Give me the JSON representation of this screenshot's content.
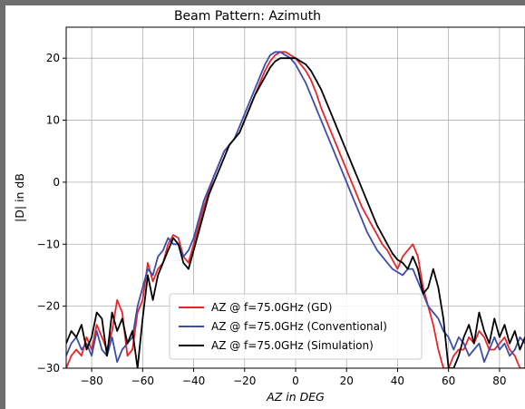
{
  "chart_data": {
    "type": "line",
    "title": "Beam Pattern: Azimuth",
    "xlabel": "AZ in DEG",
    "ylabel": "|D| in dB",
    "xlim": [
      -90,
      90
    ],
    "ylim": [
      -30,
      25
    ],
    "xticks": [
      -80,
      -60,
      -40,
      -20,
      0,
      20,
      40,
      60,
      80
    ],
    "yticks": [
      -30,
      -20,
      -10,
      0,
      10,
      20
    ],
    "xtick_labels": [
      "−80",
      "−60",
      "−40",
      "−20",
      "0",
      "20",
      "40",
      "60",
      "80"
    ],
    "ytick_labels": [
      "−30",
      "−20",
      "−10",
      "0",
      "10",
      "20"
    ],
    "grid": true,
    "legend_position": "lower-center",
    "series": [
      {
        "name": "AZ @ f=75.0GHz (GD)",
        "color": "#e8262a",
        "x": [
          -90,
          -88,
          -86,
          -84,
          -82,
          -80,
          -78,
          -76,
          -74,
          -72,
          -70,
          -68,
          -66,
          -64,
          -62,
          -60,
          -58,
          -56,
          -54,
          -52,
          -50,
          -48,
          -46,
          -44,
          -42,
          -40,
          -38,
          -36,
          -34,
          -32,
          -30,
          -28,
          -26,
          -24,
          -22,
          -20,
          -18,
          -16,
          -14,
          -12,
          -10,
          -8,
          -6,
          -4,
          -2,
          0,
          2,
          4,
          6,
          8,
          10,
          12,
          14,
          16,
          18,
          20,
          22,
          24,
          26,
          28,
          30,
          32,
          34,
          36,
          38,
          40,
          42,
          44,
          46,
          48,
          50,
          52,
          54,
          56,
          58,
          60,
          62,
          64,
          66,
          68,
          70,
          72,
          74,
          76,
          78,
          80,
          82,
          84,
          86,
          88,
          90
        ],
        "y": [
          -30,
          -28,
          -27,
          -28,
          -25,
          -27,
          -23,
          -25,
          -27,
          -24,
          -19,
          -21,
          -28,
          -27,
          -21,
          -19,
          -13,
          -16,
          -14,
          -13,
          -10,
          -8.5,
          -9,
          -12,
          -13,
          -10,
          -7,
          -4,
          -1.5,
          1,
          3,
          5,
          6,
          7,
          8,
          10,
          12,
          14,
          16,
          18,
          19.5,
          20.5,
          21,
          21,
          20.5,
          20,
          19,
          18,
          16.5,
          14.5,
          12,
          10,
          8,
          6,
          4,
          2,
          0,
          -2,
          -4,
          -5.5,
          -7,
          -8.5,
          -10,
          -11,
          -12.5,
          -14,
          -12,
          -11,
          -10,
          -12,
          -17,
          -20,
          -23,
          -27,
          -30,
          -30,
          -28,
          -27,
          -27,
          -25,
          -26,
          -24,
          -25,
          -27,
          -27,
          -26,
          -25,
          -27,
          -28,
          -30,
          -30
        ]
      },
      {
        "name": "AZ @ f=75.0GHz (Conventional)",
        "color": "#3c4ea8",
        "x": [
          -90,
          -88,
          -86,
          -84,
          -82,
          -80,
          -78,
          -76,
          -74,
          -72,
          -70,
          -68,
          -66,
          -64,
          -62,
          -60,
          -58,
          -56,
          -54,
          -52,
          -50,
          -48,
          -46,
          -44,
          -42,
          -40,
          -38,
          -36,
          -34,
          -32,
          -30,
          -28,
          -26,
          -24,
          -22,
          -20,
          -18,
          -16,
          -14,
          -12,
          -10,
          -8,
          -6,
          -4,
          -2,
          0,
          2,
          4,
          6,
          8,
          10,
          12,
          14,
          16,
          18,
          20,
          22,
          24,
          26,
          28,
          30,
          32,
          34,
          36,
          38,
          40,
          42,
          44,
          46,
          48,
          50,
          52,
          54,
          56,
          58,
          60,
          62,
          64,
          66,
          68,
          70,
          72,
          74,
          76,
          78,
          80,
          82,
          84,
          86,
          88,
          90
        ],
        "y": [
          -28,
          -26,
          -25,
          -27,
          -26,
          -28,
          -24,
          -27,
          -28,
          -25,
          -29,
          -27,
          -26,
          -25,
          -20,
          -17,
          -14,
          -15,
          -12,
          -11,
          -9,
          -10,
          -10,
          -12,
          -11,
          -9,
          -6,
          -3,
          -1,
          1,
          3,
          5,
          6,
          7,
          9,
          11,
          13,
          15,
          17,
          19,
          20.5,
          21,
          21,
          20.5,
          20,
          19,
          17.5,
          16,
          14,
          12,
          10,
          8,
          6,
          4,
          2,
          0,
          -2,
          -4,
          -6,
          -8,
          -9.5,
          -11,
          -12,
          -13,
          -14,
          -14.5,
          -15,
          -14,
          -14,
          -16,
          -18,
          -20,
          -21,
          -22,
          -24,
          -25,
          -27,
          -25,
          -26,
          -28,
          -27,
          -26,
          -29,
          -27,
          -25,
          -27,
          -26,
          -28,
          -27,
          -25,
          -26
        ]
      },
      {
        "name": "AZ @ f=75.0GHz (Simulation)",
        "color": "#000000",
        "x": [
          -90,
          -88,
          -86,
          -84,
          -82,
          -80,
          -78,
          -76,
          -74,
          -72,
          -70,
          -68,
          -66,
          -64,
          -62,
          -60,
          -58,
          -56,
          -54,
          -52,
          -50,
          -48,
          -46,
          -44,
          -42,
          -40,
          -38,
          -36,
          -34,
          -32,
          -30,
          -28,
          -26,
          -24,
          -22,
          -20,
          -18,
          -16,
          -14,
          -12,
          -10,
          -8,
          -6,
          -4,
          -2,
          0,
          2,
          4,
          6,
          8,
          10,
          12,
          14,
          16,
          18,
          20,
          22,
          24,
          26,
          28,
          30,
          32,
          34,
          36,
          38,
          40,
          42,
          44,
          46,
          48,
          50,
          52,
          54,
          56,
          58,
          60,
          62,
          64,
          66,
          68,
          70,
          72,
          74,
          76,
          78,
          80,
          82,
          84,
          86,
          88,
          90
        ],
        "y": [
          -26,
          -24,
          -25,
          -23,
          -27,
          -25,
          -21,
          -22,
          -28,
          -21,
          -24,
          -22,
          -26,
          -24,
          -30,
          -22,
          -15,
          -19,
          -15,
          -13,
          -11,
          -9,
          -10,
          -13,
          -14,
          -11,
          -8,
          -5,
          -2,
          0,
          2,
          4,
          6,
          7,
          8,
          10,
          12,
          14,
          15.5,
          17,
          18.5,
          19.5,
          20,
          20,
          20,
          20,
          19.5,
          19,
          18,
          16.5,
          15,
          13,
          11,
          9,
          7,
          5,
          3,
          1,
          -1,
          -3,
          -5,
          -7,
          -8.5,
          -10,
          -11.5,
          -12.5,
          -13,
          -14,
          -12,
          -14,
          -18,
          -17,
          -14,
          -17,
          -22,
          -30,
          -30,
          -28,
          -25,
          -23,
          -26,
          -21,
          -24,
          -26,
          -22,
          -25,
          -23,
          -26,
          -24,
          -27,
          -25
        ]
      }
    ]
  }
}
